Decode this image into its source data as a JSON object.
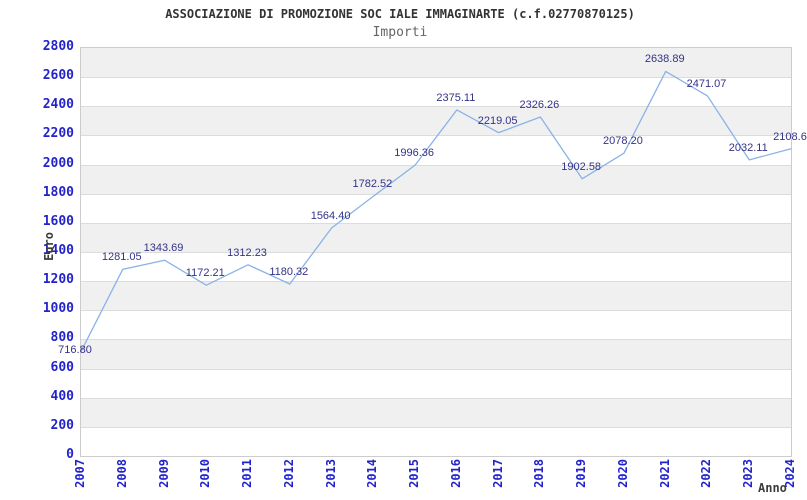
{
  "header": {
    "title": "ASSOCIAZIONE DI PROMOZIONE SOC IALE IMMAGINARTE (c.f.02770870125)",
    "subtitle": "Importi"
  },
  "chart_data": {
    "type": "line",
    "title": "ASSOCIAZIONE DI PROMOZIONE SOC IALE IMMAGINARTE (c.f.02770870125)",
    "subtitle": "Importi",
    "xlabel": "Anno",
    "ylabel": "Euro",
    "x": [
      "2007",
      "2008",
      "2009",
      "2010",
      "2011",
      "2012",
      "2013",
      "2014",
      "2015",
      "2016",
      "2017",
      "2018",
      "2019",
      "2020",
      "2021",
      "2022",
      "2023",
      "2024"
    ],
    "values": [
      716.8,
      1281.05,
      1343.69,
      1172.21,
      1312.23,
      1180.32,
      1564.4,
      1782.52,
      1996.36,
      2375.11,
      2219.05,
      2326.26,
      1902.58,
      2078.2,
      2638.89,
      2471.07,
      2032.11,
      2108.6
    ],
    "point_labels": [
      "716.80",
      "1281.05",
      "1343.69",
      "1172.21",
      "1312.23",
      "1180.32",
      "1564.40",
      "1782.52",
      "1996.36",
      "2375.11",
      "2219.05",
      "2326.26",
      "1902.58",
      "2078.20",
      "2638.89",
      "2471.07",
      "2032.11",
      "2108.6"
    ],
    "ylim": [
      0,
      2800
    ],
    "ytick_step": 200,
    "grid": "horizontal-bands-alternating",
    "legend": "none",
    "markers": "none"
  },
  "colors": {
    "title": "#333333",
    "subtitle": "#666666",
    "axis_title": "#3c3c3c",
    "axis_tick_label": "#2323cb",
    "data_label": "#333388",
    "line": "#89b3e6",
    "band_gray": "#f0f0f0",
    "band_white": "#ffffff",
    "grid_line": "#dcdcdc",
    "plot_border": "#cccccc",
    "background": "#ffffff"
  }
}
